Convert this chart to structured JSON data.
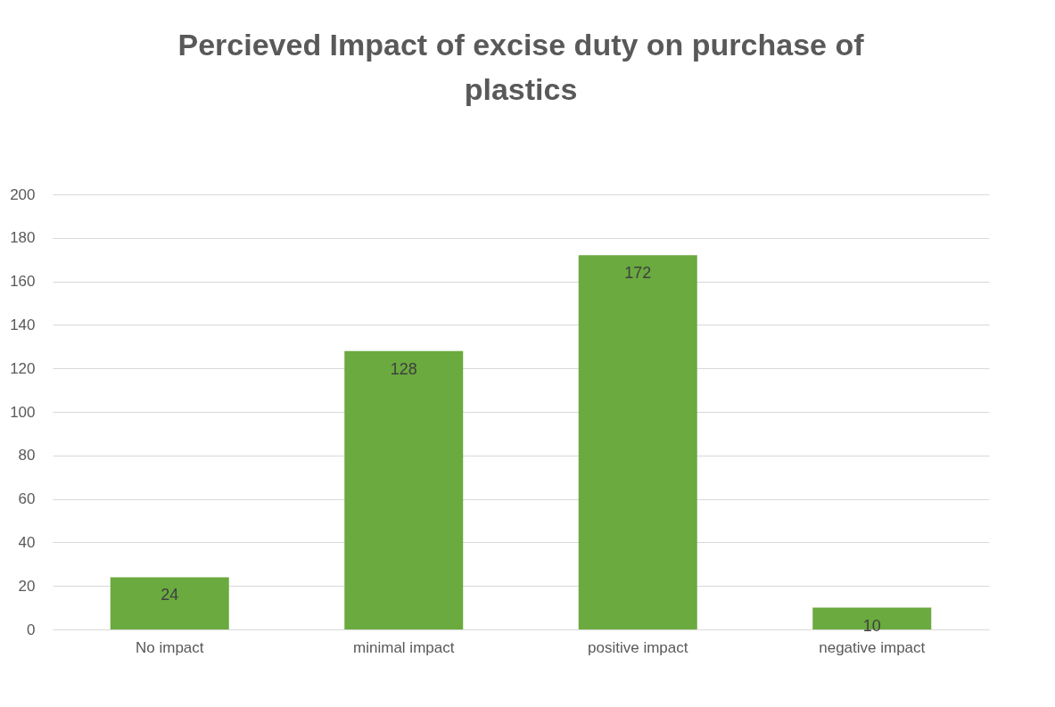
{
  "chart_data": {
    "type": "bar",
    "title": "Percieved Impact of excise duty on purchase of plastics",
    "categories": [
      "No impact",
      "minimal impact",
      "positive impact",
      "negative impact"
    ],
    "values": [
      24,
      128,
      172,
      10
    ],
    "color": "#6aaa3e",
    "ylim": [
      0,
      200
    ],
    "yticks": [
      0,
      20,
      40,
      60,
      80,
      100,
      120,
      140,
      160,
      180,
      200
    ],
    "grid": "y",
    "data_labels": true
  }
}
